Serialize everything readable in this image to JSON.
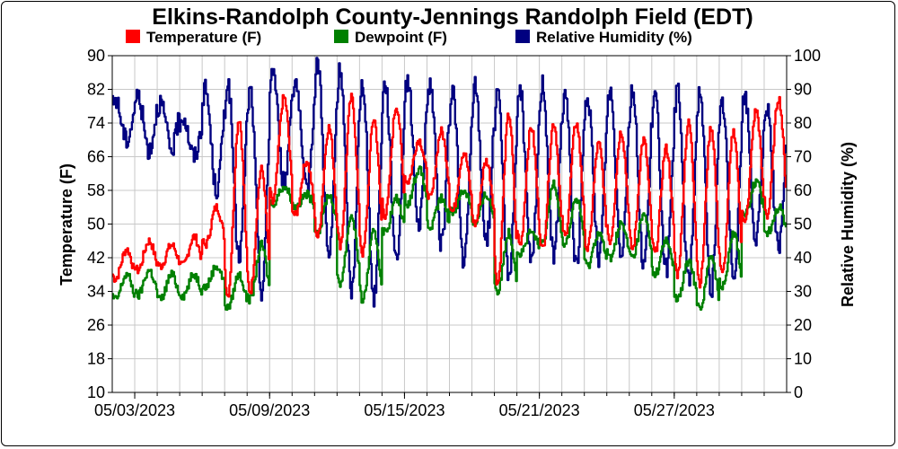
{
  "chart_data": {
    "type": "line",
    "title": "Elkins-Randolph County-Jennings Randolph Field (EDT)",
    "ylabel": "Temperature (F)",
    "y2label": "Relative Humidity (%)",
    "ylim": [
      10,
      90
    ],
    "y2lim": [
      0,
      100
    ],
    "yticks": [
      "10",
      "18",
      "26",
      "34",
      "42",
      "50",
      "58",
      "66",
      "74",
      "82",
      "90"
    ],
    "y2ticks": [
      "0",
      "10",
      "20",
      "30",
      "40",
      "50",
      "60",
      "70",
      "80",
      "90",
      "100"
    ],
    "xlim": [
      0,
      30
    ],
    "xticks": [
      {
        "day": 1,
        "label": "05/03/2023"
      },
      {
        "day": 7,
        "label": "05/09/2023"
      },
      {
        "day": 13,
        "label": "05/15/2023"
      },
      {
        "day": 19,
        "label": "05/21/2023"
      },
      {
        "day": 25,
        "label": "05/27/2023"
      }
    ],
    "grid": true,
    "legend_position": "top",
    "series": [
      {
        "name": "Temperature (F)",
        "color": "#ff0000",
        "axis": "left",
        "highs": [
          44,
          46,
          45,
          47,
          54,
          75,
          63,
          80,
          65,
          73,
          80,
          75,
          78,
          70,
          72,
          67,
          65,
          76,
          73,
          74,
          74,
          69,
          72,
          70,
          68,
          74,
          73,
          72,
          77,
          80
        ],
        "lows": [
          37,
          39,
          40,
          40,
          45,
          33,
          34,
          55,
          52,
          47,
          45,
          43,
          52,
          60,
          56,
          53,
          50,
          36,
          45,
          44,
          47,
          44,
          46,
          44,
          43,
          38,
          36,
          38,
          50,
          52
        ]
      },
      {
        "name": "Dewpoint (F)",
        "color": "#008000",
        "axis": "left",
        "highs": [
          38,
          39,
          38,
          38,
          40,
          38,
          45,
          59,
          57,
          57,
          52,
          48,
          56,
          63,
          56,
          58,
          57,
          48,
          48,
          60,
          56,
          48,
          50,
          52,
          46,
          41,
          42,
          48,
          60,
          54
        ],
        "lows": [
          32,
          33,
          32,
          33,
          35,
          30,
          32,
          55,
          54,
          48,
          36,
          32,
          48,
          55,
          49,
          53,
          50,
          34,
          43,
          45,
          45,
          40,
          42,
          42,
          38,
          32,
          30,
          35,
          52,
          48
        ]
      },
      {
        "name": "Relative Humidity (%)",
        "color": "#000080",
        "axis": "right",
        "highs": [
          87,
          88,
          86,
          82,
          90,
          92,
          90,
          96,
          93,
          98,
          96,
          92,
          92,
          93,
          92,
          90,
          91,
          88,
          90,
          92,
          89,
          88,
          90,
          90,
          88,
          90,
          90,
          86,
          88,
          85
        ],
        "lows": [
          75,
          72,
          72,
          70,
          60,
          40,
          30,
          62,
          60,
          40,
          30,
          28,
          40,
          50,
          44,
          38,
          45,
          35,
          38,
          40,
          38,
          40,
          42,
          38,
          36,
          33,
          30,
          35,
          45,
          42
        ]
      }
    ]
  }
}
